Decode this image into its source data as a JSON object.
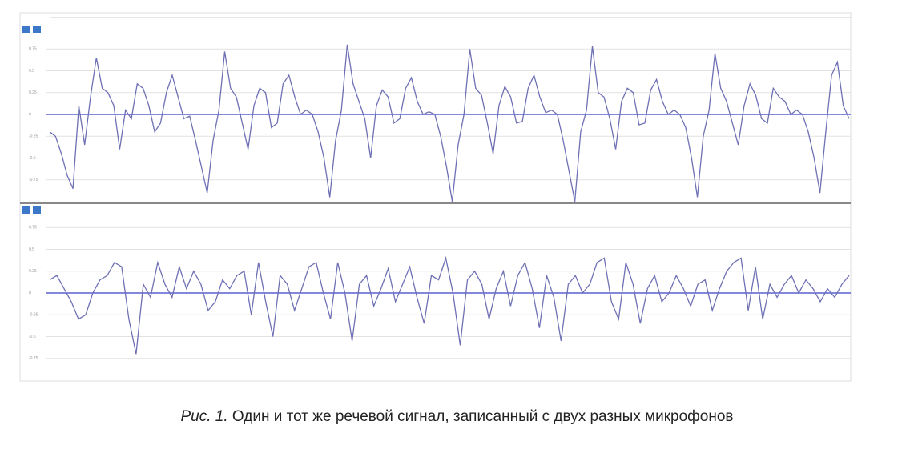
{
  "chart_data": [
    {
      "type": "line",
      "color": "#6e70b4",
      "zero_color": "#5b60d0",
      "grid": true,
      "ylim": [
        -1,
        1
      ],
      "yticks": [
        -0.75,
        -0.5,
        -0.25,
        0,
        0.25,
        0.5,
        0.75
      ],
      "values": [
        -0.2,
        -0.25,
        -0.45,
        -0.7,
        -0.85,
        0.1,
        -0.35,
        0.2,
        0.65,
        0.3,
        0.25,
        0.1,
        -0.4,
        0.05,
        -0.05,
        0.35,
        0.3,
        0.1,
        -0.2,
        -0.1,
        0.25,
        0.45,
        0.2,
        -0.05,
        -0.02,
        -0.3,
        -0.6,
        -0.9,
        -0.3,
        0.05,
        0.72,
        0.3,
        0.2,
        -0.1,
        -0.4,
        0.1,
        0.3,
        0.25,
        -0.15,
        -0.1,
        0.35,
        0.45,
        0.2,
        0.0,
        0.05,
        0.0,
        -0.2,
        -0.5,
        -0.95,
        -0.3,
        0.05,
        0.8,
        0.35,
        0.15,
        -0.05,
        -0.5,
        0.1,
        0.28,
        0.2,
        -0.1,
        -0.05,
        0.3,
        0.42,
        0.15,
        0.0,
        0.03,
        0.0,
        -0.25,
        -0.6,
        -1.0,
        -0.35,
        0.0,
        0.75,
        0.3,
        0.22,
        -0.1,
        -0.45,
        0.1,
        0.32,
        0.2,
        -0.1,
        -0.08,
        0.3,
        0.45,
        0.2,
        0.02,
        0.05,
        0.0,
        -0.3,
        -0.65,
        -1.0,
        -0.2,
        0.05,
        0.78,
        0.25,
        0.2,
        -0.05,
        -0.4,
        0.15,
        0.3,
        0.25,
        -0.12,
        -0.1,
        0.28,
        0.4,
        0.15,
        0.0,
        0.05,
        0.0,
        -0.15,
        -0.5,
        -0.95,
        -0.25,
        0.05,
        0.7,
        0.3,
        0.15,
        -0.1,
        -0.35,
        0.1,
        0.35,
        0.22,
        -0.05,
        -0.1,
        0.3,
        0.2,
        0.15,
        0.0,
        0.05,
        0.0,
        -0.2,
        -0.5,
        -0.9,
        -0.2,
        0.45,
        0.6,
        0.1,
        -0.05
      ]
    },
    {
      "type": "line",
      "color": "#6e70b4",
      "zero_color": "#5b60d0",
      "grid": true,
      "ylim": [
        -1,
        1
      ],
      "yticks": [
        -0.75,
        -0.5,
        -0.25,
        0,
        0.25,
        0.5,
        0.75
      ],
      "values": [
        0.15,
        0.2,
        0.05,
        -0.1,
        -0.3,
        -0.25,
        0.0,
        0.15,
        0.2,
        0.35,
        0.3,
        -0.3,
        -0.7,
        0.1,
        -0.05,
        0.35,
        0.1,
        -0.05,
        0.3,
        0.05,
        0.25,
        0.1,
        -0.2,
        -0.1,
        0.15,
        0.05,
        0.2,
        0.25,
        -0.25,
        0.35,
        -0.1,
        -0.5,
        0.2,
        0.1,
        -0.2,
        0.05,
        0.3,
        0.35,
        0.0,
        -0.3,
        0.35,
        0.0,
        -0.55,
        0.1,
        0.2,
        -0.15,
        0.05,
        0.28,
        -0.1,
        0.1,
        0.3,
        -0.05,
        -0.35,
        0.2,
        0.15,
        0.4,
        0.0,
        -0.6,
        0.15,
        0.25,
        0.1,
        -0.3,
        0.05,
        0.25,
        -0.15,
        0.2,
        0.35,
        0.05,
        -0.4,
        0.2,
        -0.05,
        -0.55,
        0.1,
        0.2,
        0.0,
        0.1,
        0.35,
        0.4,
        -0.1,
        -0.3,
        0.35,
        0.1,
        -0.35,
        0.05,
        0.2,
        -0.1,
        0.0,
        0.2,
        0.05,
        -0.15,
        0.1,
        0.15,
        -0.2,
        0.05,
        0.25,
        0.35,
        0.4,
        -0.2,
        0.3,
        -0.3,
        0.1,
        -0.05,
        0.1,
        0.2,
        0.0,
        0.15,
        0.05,
        -0.1,
        0.05,
        -0.05,
        0.1,
        0.2
      ]
    }
  ],
  "caption": {
    "label": "Рис. 1.",
    "text": "Один и тот же речевой сигнал, записанный с двух разных микрофонов"
  }
}
